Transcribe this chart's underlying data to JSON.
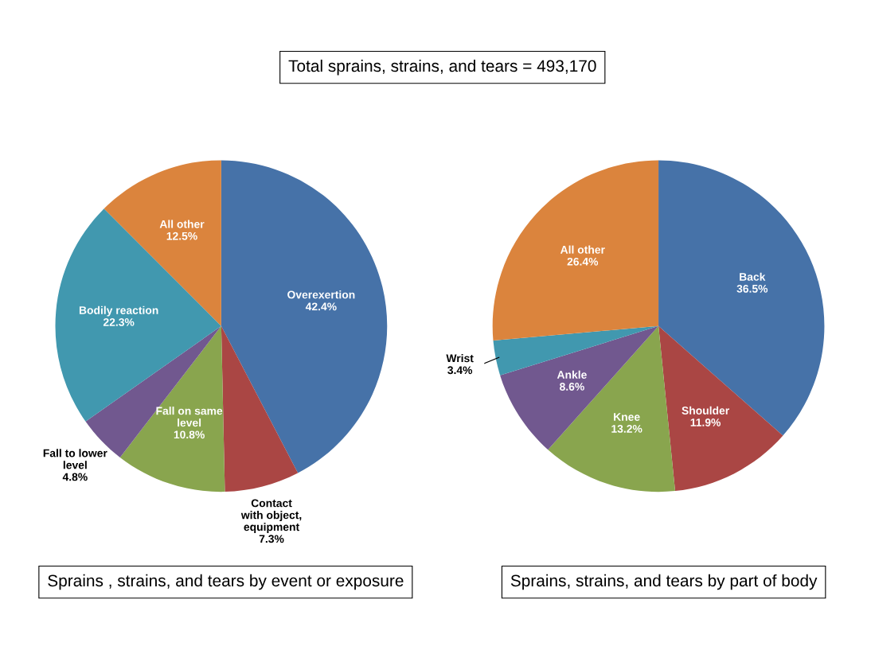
{
  "chart_data": [
    {
      "type": "pie",
      "title": "Sprains , strains, and tears by event or exposure",
      "annotations": [
        "Total sprains, strains, and tears = 493,170"
      ],
      "categories": [
        "Overexertion",
        "Contact\nwith object,\nequipment",
        "Fall on same\nlevel",
        "Fall to lower\nlevel",
        "Bodily reaction",
        "All other"
      ],
      "values": [
        42.4,
        7.3,
        10.8,
        4.8,
        22.3,
        12.5
      ],
      "value_labels": [
        "42.4%",
        "7.3%",
        "10.8%",
        "4.8%",
        "22.3%",
        "12.5%"
      ],
      "colors": [
        "#4672a8",
        "#aa4644",
        "#89a54e",
        "#71588f",
        "#4198af",
        "#db843d"
      ]
    },
    {
      "type": "pie",
      "title": "Sprains, strains, and tears by part of body",
      "categories": [
        "Back",
        "Shoulder",
        "Knee",
        "Ankle",
        "Wrist",
        "All other"
      ],
      "values": [
        36.5,
        11.9,
        13.2,
        8.6,
        3.4,
        26.4
      ],
      "value_labels": [
        "36.5%",
        "11.9%",
        "13.2%",
        "8.6%",
        "3.4%",
        "26.4%"
      ],
      "colors": [
        "#4672a8",
        "#aa4644",
        "#89a54e",
        "#71588f",
        "#4198af",
        "#db843d"
      ]
    }
  ]
}
